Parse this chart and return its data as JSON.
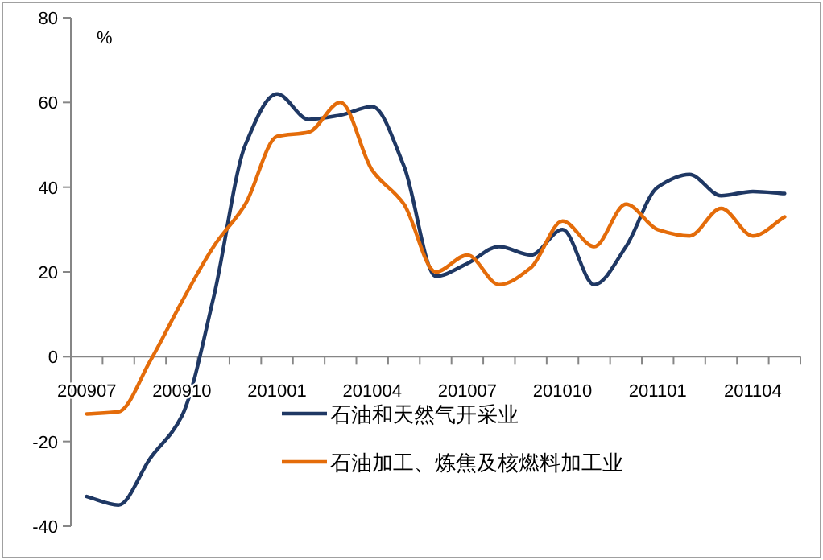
{
  "chart_data": {
    "type": "line",
    "ylabel": "%",
    "categories": [
      "200907",
      null,
      null,
      "200910",
      null,
      null,
      "201001",
      null,
      null,
      "201004",
      null,
      null,
      "201007",
      null,
      null,
      "201010",
      null,
      null,
      "201101",
      null,
      null,
      "201104",
      null
    ],
    "series": [
      {
        "name": "石油和天然气开采业",
        "color": "#1f3864",
        "values": [
          -33,
          -35,
          -24,
          -14,
          14,
          50,
          62,
          56,
          57,
          59,
          45,
          19,
          22,
          26,
          24,
          30,
          17,
          26,
          40,
          43,
          38,
          39,
          38.5
        ]
      },
      {
        "name": "石油加工、炼焦及核燃料加工业",
        "color": "#e46c0a",
        "values": [
          -13.5,
          -13,
          -1,
          13,
          26,
          36,
          52,
          53,
          60,
          44,
          36,
          20,
          24,
          17,
          21,
          32,
          26,
          36,
          30,
          28.5,
          35,
          28.5,
          33
        ]
      }
    ],
    "ylim": [
      -40,
      80
    ],
    "yticks": [
      -40,
      -20,
      0,
      20,
      40,
      60,
      80
    ],
    "legend": "bottom"
  }
}
